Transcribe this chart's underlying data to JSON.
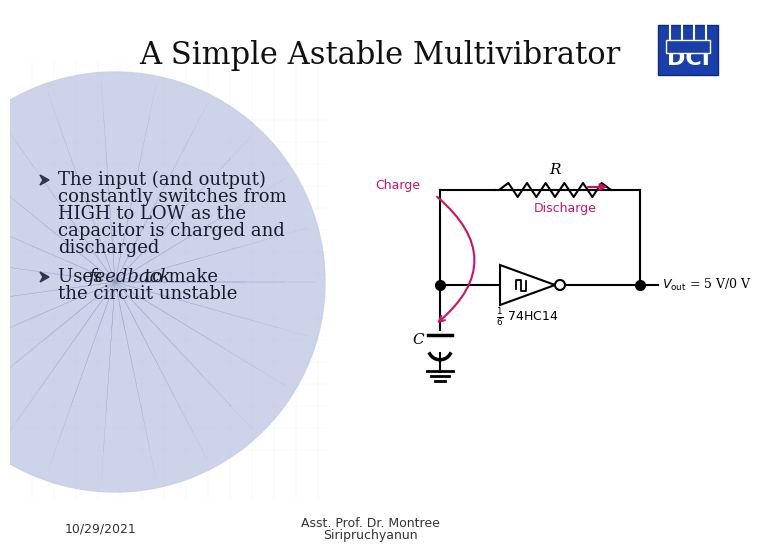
{
  "title": "A Simple Astable Multivibrator",
  "title_fontsize": 22,
  "bg_color": "#ffffff",
  "circle_color": "#c8d0e8",
  "bullet1_lines": [
    "The input (and output)",
    "constantly switches from",
    "HIGH to LOW as the",
    "capacitor is charged and",
    "discharged"
  ],
  "bullet2_line1": "Uses ",
  "bullet2_italic": "feedback",
  "bullet2_line2": " to make",
  "bullet2_line3": "the circuit unstable",
  "bullet_fontsize": 13,
  "bullet_color": "#1a1a2e",
  "date_text": "10/29/2021",
  "footer_text1": "Asst. Prof. Dr. Montree",
  "footer_text2": "Siripruchyanun",
  "footer_fontsize": 9,
  "arrow_color": "#cc1166",
  "charge_label": "Charge",
  "discharge_label": "Discharge",
  "r_label": "R",
  "c_label": "C",
  "ic_label": "74HC14",
  "vout_label": "$V_{\\mathrm{out}}$ = 5 V/0 V",
  "dci_blue": "#1a3faa"
}
